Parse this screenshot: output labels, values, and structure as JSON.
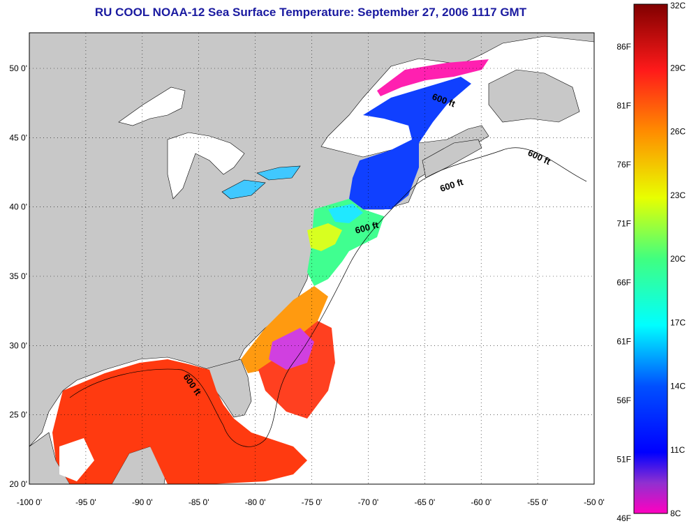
{
  "title": "RU COOL  NOAA-12  Sea Surface Temperature:  September 27, 2006 1117 GMT",
  "lon_labels": [
    "-100 0'",
    "-95 0'",
    "-90 0'",
    "-85 0'",
    "-80 0'",
    "-75 0'",
    "-70 0'",
    "-65 0'",
    "-60 0'",
    "-55 0'",
    "-50 0'"
  ],
  "lat_labels": [
    "50 0'",
    "45 0'",
    "40 0'",
    "35 0'",
    "30 0'",
    "25 0'",
    "20 0'"
  ],
  "contour_label": "600 ft",
  "colorbar": {
    "celsius": [
      "32C",
      "29C",
      "26C",
      "23C",
      "20C",
      "17C",
      "14C",
      "11C",
      "8C"
    ],
    "fahrenheit": [
      "86F",
      "81F",
      "76F",
      "71F",
      "66F",
      "61F",
      "56F",
      "51F",
      "46F"
    ],
    "colors": [
      "#800000",
      "#ff1a1a",
      "#ff8c00",
      "#e8ff00",
      "#40ff80",
      "#00ffff",
      "#0050ff",
      "#0000ff",
      "#9030d0",
      "#ff00c0"
    ]
  },
  "colors": {
    "land": "#c8c8c8",
    "no_data": "#ffffff",
    "title": "#1a1aa0"
  }
}
